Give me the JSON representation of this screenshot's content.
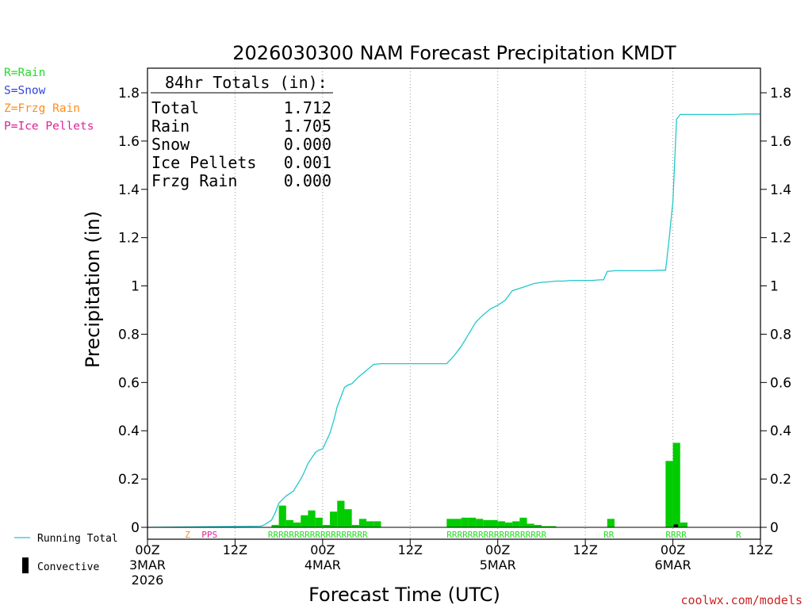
{
  "chart_data": {
    "type": "bar",
    "title": "2026030300 NAM Forecast Precipitation KMDT",
    "ylabel": "Precipitation (in)",
    "xlabel": "Forecast Time (UTC)",
    "ylim": [
      0,
      1.88
    ],
    "xlim_hours": [
      0,
      84
    ],
    "y_ticks": [
      0,
      0.2,
      0.4,
      0.6,
      0.8,
      1,
      1.2,
      1.4,
      1.6,
      1.8
    ],
    "y_tick_labels": [
      "0",
      "0.2",
      "0.4",
      "0.6",
      "0.8",
      "1",
      "1.2",
      "1.4",
      "1.6",
      "1.8"
    ],
    "x_ticks": [
      {
        "hour": 0,
        "lines": [
          "00Z",
          "3MAR",
          "2026"
        ]
      },
      {
        "hour": 12,
        "lines": [
          "12Z"
        ]
      },
      {
        "hour": 24,
        "lines": [
          "00Z",
          "4MAR"
        ]
      },
      {
        "hour": 36,
        "lines": [
          "12Z"
        ]
      },
      {
        "hour": 48,
        "lines": [
          "00Z",
          "5MAR"
        ]
      },
      {
        "hour": 60,
        "lines": [
          "12Z"
        ]
      },
      {
        "hour": 72,
        "lines": [
          "00Z",
          "6MAR"
        ]
      },
      {
        "hour": 84,
        "lines": [
          "12Z"
        ]
      }
    ],
    "gridlines_hours": [
      12,
      24,
      36,
      48,
      60,
      72
    ],
    "hourly_precip": {
      "hours": [
        17,
        18,
        19,
        20,
        21,
        22,
        23,
        24,
        25,
        26,
        27,
        28,
        29,
        30,
        31,
        41,
        42,
        43,
        44,
        45,
        46,
        47,
        48,
        49,
        50,
        51,
        52,
        53,
        54,
        55,
        63,
        71,
        72,
        73
      ],
      "values": [
        0.01,
        0.09,
        0.03,
        0.02,
        0.05,
        0.07,
        0.04,
        0.01,
        0.065,
        0.11,
        0.075,
        0.01,
        0.035,
        0.025,
        0.025,
        0.035,
        0.035,
        0.04,
        0.04,
        0.035,
        0.03,
        0.03,
        0.025,
        0.02,
        0.025,
        0.04,
        0.015,
        0.01,
        0.005,
        0.005,
        0.035,
        0.275,
        0.35,
        0.02
      ]
    },
    "convective": {
      "hours": [
        72
      ],
      "values": [
        0.012
      ]
    },
    "running_total": {
      "hours": [
        0,
        15.5,
        16,
        17,
        17.5,
        18,
        19,
        20,
        21,
        21.5,
        22,
        23,
        23.5,
        24,
        25,
        25.5,
        26,
        26.5,
        27,
        27.5,
        28,
        29,
        30,
        31,
        32,
        33,
        34,
        35,
        36,
        37,
        38,
        39,
        41,
        42,
        43,
        44,
        45,
        46,
        47,
        48,
        49,
        50,
        51,
        52,
        53,
        54,
        55,
        56,
        57,
        58,
        59,
        60,
        61,
        62,
        62.5,
        63,
        64,
        65,
        66,
        67,
        68,
        69,
        70,
        71,
        71.5,
        72,
        72.5,
        73,
        74,
        75,
        76,
        77,
        78,
        79,
        80,
        81,
        82,
        84
      ],
      "values": [
        0,
        0.005,
        0.01,
        0.03,
        0.06,
        0.1,
        0.13,
        0.15,
        0.2,
        0.23,
        0.265,
        0.31,
        0.32,
        0.325,
        0.39,
        0.44,
        0.5,
        0.54,
        0.58,
        0.59,
        0.595,
        0.625,
        0.65,
        0.675,
        0.678,
        0.678,
        0.678,
        0.678,
        0.678,
        0.678,
        0.678,
        0.678,
        0.678,
        0.71,
        0.75,
        0.8,
        0.85,
        0.88,
        0.905,
        0.92,
        0.94,
        0.98,
        0.99,
        1.0,
        1.01,
        1.015,
        1.017,
        1.02,
        1.02,
        1.023,
        1.023,
        1.023,
        1.023,
        1.025,
        1.025,
        1.06,
        1.063,
        1.063,
        1.063,
        1.063,
        1.063,
        1.063,
        1.065,
        1.065,
        1.2,
        1.35,
        1.69,
        1.71,
        1.71,
        1.71,
        1.71,
        1.71,
        1.71,
        1.71,
        1.71,
        1.711,
        1.712,
        1.712
      ]
    },
    "ptype_marks": [
      {
        "hour": 5.5,
        "label": "Z",
        "color": "#ff8c1a"
      },
      {
        "hour": 8.5,
        "label": "PPS",
        "color": "#dd2299"
      },
      {
        "start_hour": 16.5,
        "label": "RRRRRRRRRRRRRRRRRRR",
        "color": "#22dd22"
      },
      {
        "start_hour": 41,
        "label": "RRRRRRRRRRRRRRRRRRR",
        "color": "#22dd22"
      },
      {
        "start_hour": 62.5,
        "label": "RR",
        "color": "#22dd22"
      },
      {
        "start_hour": 71,
        "label": "RRRR",
        "color": "#22dd22"
      },
      {
        "hour": 81,
        "label": "R",
        "color": "#22dd22"
      }
    ],
    "totals_box": {
      "heading": "84hr Totals (in):",
      "rows": [
        {
          "label": "Total",
          "value": "1.712"
        },
        {
          "label": "Rain",
          "value": "1.705"
        },
        {
          "label": "Snow",
          "value": "0.000"
        },
        {
          "label": "Ice Pellets",
          "value": "0.001"
        },
        {
          "label": "Frzg Rain",
          "value": "0.000"
        }
      ]
    },
    "legend_top": [
      {
        "text": "R=Rain",
        "color": "#22dd22"
      },
      {
        "text": "S=Snow",
        "color": "#3344dd"
      },
      {
        "text": "Z=Frzg Rain",
        "color": "#ff8c1a"
      },
      {
        "text": "P=Ice Pellets",
        "color": "#dd2299"
      }
    ],
    "legend_bottom": [
      {
        "text": "Running Total",
        "type": "line",
        "color": "#22c8cc"
      },
      {
        "text": "Convective",
        "type": "bar",
        "color": "#000000"
      }
    ],
    "colors": {
      "bar": "#00cc00",
      "total_line": "#22c8cc",
      "convective": "#000000",
      "grid": "#999999",
      "axis": "#000000",
      "credit": "#cc2222"
    },
    "credit": "coolwx.com/models"
  }
}
